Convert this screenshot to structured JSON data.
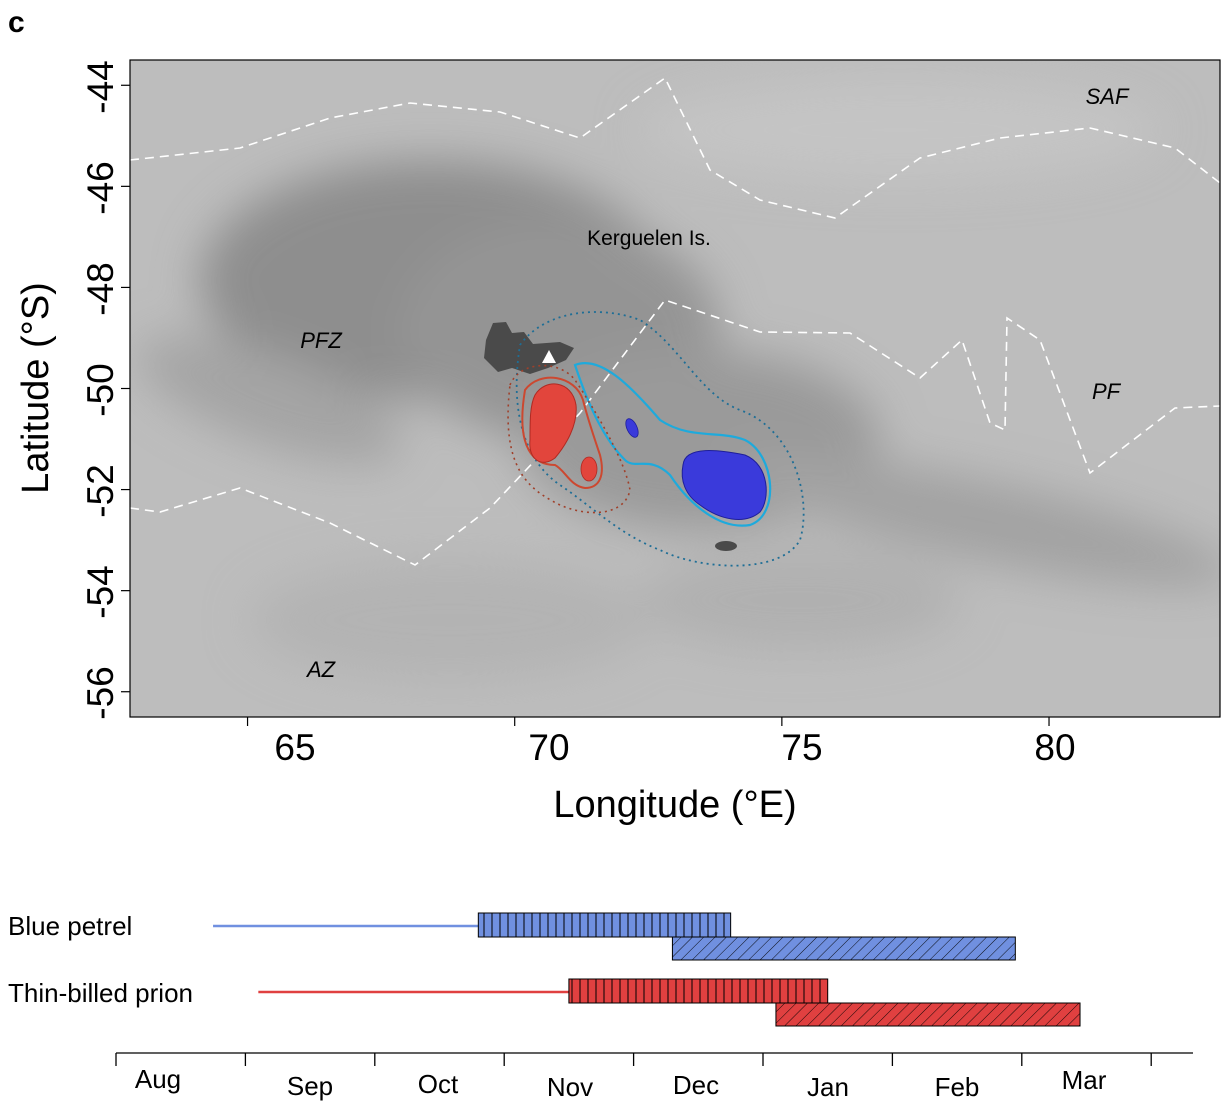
{
  "panel_label": "c",
  "chart_data": [
    {
      "type": "map",
      "xlabel": "Longitude (°E)",
      "ylabel": "Latitude (°S)",
      "xlim": [
        62.8,
        83.2
      ],
      "ylim": [
        -56.5,
        -43.5
      ],
      "xticks": [
        65,
        70,
        75,
        80
      ],
      "yticks": [
        -44,
        -46,
        -48,
        -50,
        -52,
        -54,
        -56
      ],
      "zone_labels": [
        {
          "text": "SAF",
          "lon": 81.0,
          "lat": -44.2
        },
        {
          "text": "PFZ",
          "lon": 66.0,
          "lat": -49.0
        },
        {
          "text": "PF",
          "lon": 81.0,
          "lat": -50.1
        },
        {
          "text": "AZ",
          "lon": 65.5,
          "lat": -55.6
        }
      ],
      "place_labels": [
        {
          "text": "Kerguelen Is.",
          "lon": 71.7,
          "lat": -47.1
        }
      ],
      "colors": {
        "blue_core": "#3a3adb",
        "blue_outline": "#1eaadc",
        "blue_dotted": "#1e6e96",
        "red_core": "#e2453c",
        "red_outline": "#cc4830",
        "red_dotted": "#a0402a",
        "front_line": "#ffffff",
        "island": "#4a4a4a"
      }
    },
    {
      "type": "gantt",
      "categories": [
        "Blue petrel",
        "Thin-billed prion"
      ],
      "months": [
        "Aug",
        "Sep",
        "Oct",
        "Nov",
        "Dec",
        "Jan",
        "Feb",
        "Mar"
      ],
      "series": [
        {
          "name": "Blue petrel",
          "color": "#7090e0",
          "line": [
            0.75,
            2.8
          ],
          "bar_vertical": [
            2.8,
            4.75
          ],
          "bar_hatched": [
            4.3,
            6.95
          ]
        },
        {
          "name": "Thin-billed prion",
          "color": "#e04040",
          "line": [
            1.1,
            3.5
          ],
          "bar_vertical": [
            3.5,
            5.5
          ],
          "bar_hatched": [
            5.1,
            7.45
          ]
        }
      ]
    }
  ]
}
